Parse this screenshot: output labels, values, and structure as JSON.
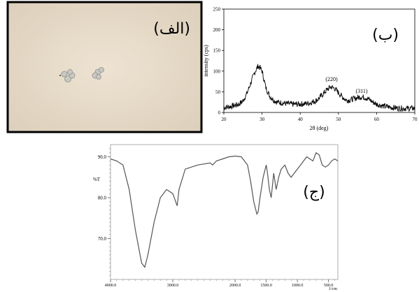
{
  "panels": {
    "a_label": "(الف)",
    "b_label": "(ب)",
    "c_label": "(ج)"
  },
  "chart_data": [
    {
      "type": "line",
      "panel": "(ب)",
      "title": "",
      "xlabel": "2θ (deg)",
      "ylabel": "intensity (cps)",
      "xlim": [
        20,
        70
      ],
      "ylim": [
        0,
        250
      ],
      "xticks": [
        "20",
        "30",
        "40",
        "50",
        "60",
        "70"
      ],
      "yticks": [
        "0",
        "50",
        "100",
        "150",
        "200",
        "250"
      ],
      "x": [
        20,
        22,
        24,
        25,
        26,
        27,
        28,
        28.5,
        29,
        29.5,
        30,
        30.5,
        31,
        32,
        33,
        34,
        36,
        38,
        40,
        42,
        44,
        45,
        46,
        47,
        48,
        49,
        50,
        51,
        52,
        53,
        54,
        55,
        56,
        57,
        58,
        59,
        60,
        62,
        64,
        66,
        68,
        70
      ],
      "y": [
        12,
        15,
        20,
        28,
        45,
        70,
        95,
        105,
        112,
        108,
        100,
        80,
        60,
        40,
        30,
        25,
        22,
        20,
        20,
        22,
        28,
        35,
        45,
        55,
        62,
        58,
        48,
        38,
        30,
        30,
        33,
        36,
        38,
        36,
        32,
        25,
        20,
        15,
        12,
        10,
        10,
        10
      ],
      "annotations": [
        {
          "text": "(220)",
          "x": 48,
          "y": 68
        },
        {
          "text": "(311)",
          "x": 56.5,
          "y": 45
        }
      ]
    },
    {
      "type": "line",
      "panel": "(ج)",
      "title": "",
      "xlabel": "1/cm",
      "ylabel": "%T",
      "xlim": [
        4000,
        350
      ],
      "ylim": [
        60,
        93
      ],
      "xticks": [
        "4000.0",
        "3000.0",
        "2000.0",
        "1500.0",
        "1000.0",
        "500.0"
      ],
      "yticks": [
        "90.0",
        "80.0",
        "70.0"
      ],
      "x": [
        4000,
        3900,
        3800,
        3700,
        3600,
        3500,
        3450,
        3400,
        3300,
        3200,
        3100,
        3000,
        2930,
        2900,
        2800,
        2600,
        2400,
        2360,
        2300,
        2200,
        2100,
        2000,
        1900,
        1800,
        1750,
        1700,
        1650,
        1630,
        1600,
        1550,
        1500,
        1480,
        1450,
        1420,
        1380,
        1340,
        1300,
        1260,
        1200,
        1150,
        1100,
        1050,
        1000,
        950,
        900,
        850,
        800,
        750,
        700,
        650,
        600,
        550,
        500,
        450,
        400,
        350
      ],
      "y": [
        89.5,
        89,
        88,
        82,
        72,
        64,
        63,
        66,
        74,
        80,
        82,
        81,
        78,
        82,
        87,
        88,
        88.5,
        88,
        89,
        89.5,
        90,
        90.2,
        90,
        88,
        84,
        79,
        76,
        76.5,
        80,
        85,
        88,
        86,
        82,
        80,
        86,
        82,
        85,
        87,
        88,
        86,
        85,
        86,
        87,
        88,
        89,
        90,
        89.5,
        89,
        91,
        90.5,
        88,
        87.5,
        88,
        89,
        89.5,
        89
      ]
    }
  ]
}
